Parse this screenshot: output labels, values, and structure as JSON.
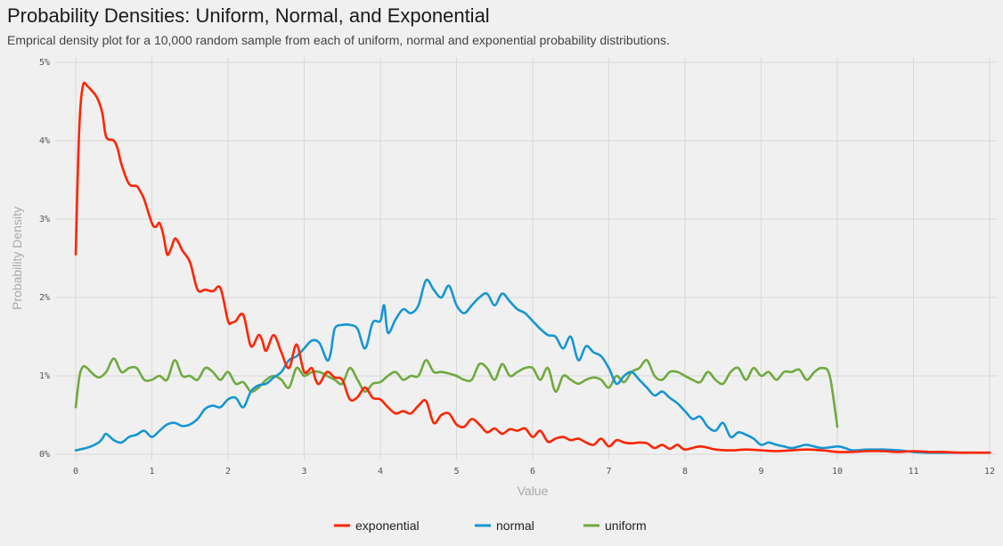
{
  "chart_data": {
    "type": "line",
    "title": "Probability Densities: Uniform, Normal, and Exponential",
    "subtitle": "Emprical density plot for a 10,000 random sample from each of uniform, normal and exponential probability distributions.",
    "xlabel": "Value",
    "ylabel": "Probability Density",
    "xlim": [
      0,
      12
    ],
    "ylim": [
      0,
      5
    ],
    "x_ticks": [
      "0",
      "1",
      "2",
      "3",
      "4",
      "5",
      "6",
      "7",
      "8",
      "9",
      "10",
      "11",
      "12"
    ],
    "y_ticks": [
      "0%",
      "1%",
      "2%",
      "3%",
      "4%",
      "5%"
    ],
    "grid": true,
    "legend_position": "bottom",
    "colors": {
      "exponential": "#ff2400",
      "normal": "#1696d2",
      "uniform": "#6faa3f",
      "grid": "#d9d9d9"
    },
    "series": [
      {
        "name": "exponential",
        "x": [
          0,
          0.03,
          0.06,
          0.1,
          0.15,
          0.2,
          0.28,
          0.35,
          0.4,
          0.5,
          0.55,
          0.6,
          0.7,
          0.8,
          0.85,
          0.9,
          1.0,
          1.05,
          1.1,
          1.15,
          1.2,
          1.25,
          1.3,
          1.35,
          1.4,
          1.5,
          1.6,
          1.7,
          1.8,
          1.9,
          2.0,
          2.05,
          2.1,
          2.2,
          2.3,
          2.4,
          2.45,
          2.5,
          2.6,
          2.7,
          2.8,
          2.9,
          3.0,
          3.1,
          3.15,
          3.2,
          3.3,
          3.4,
          3.5,
          3.6,
          3.7,
          3.8,
          3.9,
          4.0,
          4.1,
          4.2,
          4.3,
          4.4,
          4.5,
          4.6,
          4.7,
          4.8,
          4.9,
          5.0,
          5.1,
          5.2,
          5.3,
          5.4,
          5.5,
          5.6,
          5.7,
          5.8,
          5.9,
          6.0,
          6.1,
          6.2,
          6.3,
          6.4,
          6.5,
          6.6,
          6.7,
          6.8,
          6.9,
          7.0,
          7.1,
          7.2,
          7.3,
          7.4,
          7.5,
          7.6,
          7.7,
          7.8,
          7.9,
          8.0,
          8.2,
          8.4,
          8.6,
          8.8,
          9.0,
          9.2,
          9.4,
          9.6,
          9.8,
          10.0,
          10.2,
          10.4,
          10.6,
          10.8,
          11.0,
          11.2,
          11.4,
          11.6,
          11.8,
          12.0
        ],
        "y": [
          2.55,
          3.7,
          4.4,
          4.72,
          4.7,
          4.65,
          4.55,
          4.35,
          4.05,
          4.0,
          3.9,
          3.7,
          3.45,
          3.42,
          3.35,
          3.25,
          2.95,
          2.9,
          2.95,
          2.8,
          2.55,
          2.62,
          2.75,
          2.7,
          2.6,
          2.45,
          2.1,
          2.1,
          2.08,
          2.12,
          1.7,
          1.68,
          1.7,
          1.78,
          1.38,
          1.52,
          1.45,
          1.32,
          1.52,
          1.3,
          1.1,
          1.4,
          1.05,
          1.1,
          0.95,
          0.9,
          1.05,
          0.98,
          0.95,
          0.7,
          0.73,
          0.85,
          0.72,
          0.7,
          0.6,
          0.52,
          0.55,
          0.52,
          0.62,
          0.68,
          0.4,
          0.5,
          0.52,
          0.38,
          0.35,
          0.45,
          0.38,
          0.28,
          0.33,
          0.26,
          0.32,
          0.3,
          0.33,
          0.22,
          0.3,
          0.16,
          0.2,
          0.22,
          0.18,
          0.2,
          0.15,
          0.12,
          0.2,
          0.1,
          0.18,
          0.15,
          0.14,
          0.15,
          0.14,
          0.08,
          0.12,
          0.07,
          0.12,
          0.06,
          0.1,
          0.06,
          0.05,
          0.06,
          0.05,
          0.04,
          0.05,
          0.06,
          0.05,
          0.03,
          0.03,
          0.04,
          0.04,
          0.03,
          0.04,
          0.03,
          0.03,
          0.02,
          0.02,
          0.02
        ]
      },
      {
        "name": "normal",
        "x": [
          0,
          0.1,
          0.2,
          0.3,
          0.35,
          0.4,
          0.5,
          0.6,
          0.7,
          0.8,
          0.9,
          1.0,
          1.1,
          1.2,
          1.3,
          1.4,
          1.5,
          1.6,
          1.7,
          1.8,
          1.9,
          2.0,
          2.1,
          2.2,
          2.3,
          2.4,
          2.5,
          2.6,
          2.7,
          2.8,
          2.9,
          3.0,
          3.1,
          3.2,
          3.3,
          3.35,
          3.4,
          3.5,
          3.6,
          3.7,
          3.8,
          3.9,
          4.0,
          4.05,
          4.1,
          4.2,
          4.3,
          4.4,
          4.5,
          4.6,
          4.7,
          4.8,
          4.9,
          5.0,
          5.1,
          5.2,
          5.3,
          5.4,
          5.5,
          5.6,
          5.7,
          5.8,
          5.9,
          6.0,
          6.1,
          6.2,
          6.3,
          6.4,
          6.5,
          6.6,
          6.7,
          6.8,
          6.9,
          7.0,
          7.1,
          7.2,
          7.3,
          7.4,
          7.5,
          7.6,
          7.7,
          7.8,
          7.9,
          8.0,
          8.1,
          8.2,
          8.3,
          8.4,
          8.5,
          8.6,
          8.7,
          8.8,
          8.9,
          9.0,
          9.1,
          9.2,
          9.3,
          9.4,
          9.5,
          9.6,
          9.8,
          10.0,
          10.1,
          10.2,
          10.4,
          10.6,
          10.8,
          11.0,
          11.2,
          11.5,
          11.8
        ],
        "y": [
          0.05,
          0.07,
          0.1,
          0.15,
          0.2,
          0.26,
          0.18,
          0.15,
          0.22,
          0.25,
          0.3,
          0.22,
          0.3,
          0.38,
          0.4,
          0.36,
          0.38,
          0.45,
          0.58,
          0.62,
          0.6,
          0.7,
          0.72,
          0.6,
          0.8,
          0.88,
          0.9,
          0.98,
          1.05,
          1.2,
          1.25,
          1.35,
          1.45,
          1.42,
          1.2,
          1.3,
          1.6,
          1.65,
          1.65,
          1.6,
          1.35,
          1.68,
          1.7,
          1.9,
          1.55,
          1.72,
          1.85,
          1.8,
          1.9,
          2.22,
          2.1,
          2.0,
          2.15,
          1.9,
          1.8,
          1.9,
          2.0,
          2.05,
          1.9,
          2.05,
          1.95,
          1.85,
          1.8,
          1.7,
          1.6,
          1.52,
          1.5,
          1.35,
          1.5,
          1.2,
          1.38,
          1.3,
          1.25,
          1.1,
          0.9,
          1.0,
          1.05,
          0.95,
          0.85,
          0.75,
          0.8,
          0.72,
          0.65,
          0.55,
          0.45,
          0.48,
          0.35,
          0.3,
          0.4,
          0.22,
          0.28,
          0.25,
          0.2,
          0.12,
          0.15,
          0.12,
          0.1,
          0.08,
          0.1,
          0.12,
          0.08,
          0.1,
          0.08,
          0.05,
          0.06,
          0.06,
          0.05,
          0.03,
          0.02,
          0.02,
          0.02
        ]
      },
      {
        "name": "uniform",
        "x": [
          0,
          0.05,
          0.1,
          0.15,
          0.2,
          0.3,
          0.4,
          0.5,
          0.6,
          0.7,
          0.8,
          0.9,
          1.0,
          1.1,
          1.2,
          1.3,
          1.4,
          1.5,
          1.6,
          1.7,
          1.8,
          1.9,
          2.0,
          2.1,
          2.2,
          2.3,
          2.4,
          2.5,
          2.6,
          2.7,
          2.8,
          2.9,
          3.0,
          3.1,
          3.2,
          3.3,
          3.4,
          3.5,
          3.6,
          3.7,
          3.8,
          3.9,
          4.0,
          4.1,
          4.2,
          4.3,
          4.4,
          4.5,
          4.6,
          4.7,
          4.8,
          4.9,
          5.0,
          5.1,
          5.2,
          5.3,
          5.4,
          5.5,
          5.6,
          5.7,
          5.8,
          5.9,
          6.0,
          6.1,
          6.2,
          6.3,
          6.4,
          6.5,
          6.6,
          6.7,
          6.8,
          6.9,
          7.0,
          7.1,
          7.2,
          7.3,
          7.4,
          7.5,
          7.6,
          7.7,
          7.8,
          7.9,
          8.0,
          8.1,
          8.2,
          8.3,
          8.4,
          8.5,
          8.6,
          8.7,
          8.8,
          8.9,
          9.0,
          9.1,
          9.2,
          9.3,
          9.4,
          9.5,
          9.6,
          9.7,
          9.8,
          9.9,
          10.0
        ],
        "y": [
          0.6,
          1.0,
          1.12,
          1.1,
          1.05,
          0.98,
          1.05,
          1.22,
          1.05,
          1.1,
          1.1,
          0.95,
          0.95,
          1.0,
          0.95,
          1.2,
          1.0,
          1.0,
          0.95,
          1.1,
          1.05,
          0.95,
          1.05,
          0.9,
          0.92,
          0.8,
          0.85,
          0.95,
          1.0,
          0.95,
          0.85,
          1.1,
          1.0,
          1.05,
          1.05,
          1.0,
          0.95,
          0.9,
          1.1,
          0.95,
          0.8,
          0.9,
          0.92,
          1.0,
          1.05,
          0.95,
          1.0,
          1.0,
          1.2,
          1.05,
          1.05,
          1.03,
          1.0,
          0.95,
          0.95,
          1.15,
          1.1,
          0.95,
          1.15,
          1.0,
          1.05,
          1.1,
          1.1,
          0.95,
          1.1,
          0.8,
          1.0,
          0.95,
          0.9,
          0.95,
          0.98,
          0.95,
          0.85,
          1.0,
          0.92,
          1.05,
          1.1,
          1.2,
          1.0,
          0.95,
          1.05,
          1.05,
          1.0,
          0.95,
          0.92,
          1.05,
          0.95,
          0.9,
          1.05,
          1.1,
          0.95,
          1.1,
          1.0,
          1.05,
          0.95,
          1.05,
          1.05,
          1.08,
          0.95,
          1.05,
          1.1,
          1.0,
          0.35
        ]
      }
    ]
  }
}
